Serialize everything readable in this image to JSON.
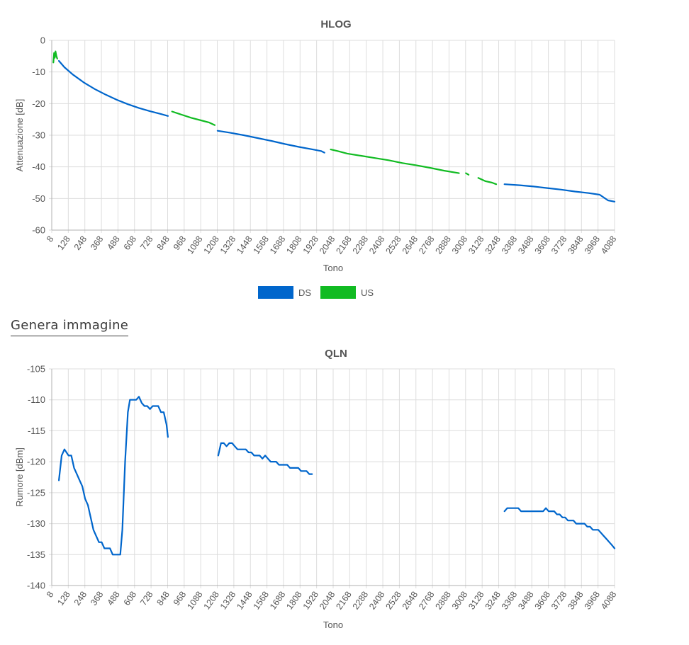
{
  "generate_link": "Genera immagine",
  "chart_data": [
    {
      "type": "line",
      "title": "HLOG",
      "xlabel": "Tono",
      "ylabel": "Attenuazione [dB]",
      "xlim": [
        8,
        4088
      ],
      "ylim": [
        -60,
        0
      ],
      "yticks": [
        0,
        -10,
        -20,
        -30,
        -40,
        -50,
        -60
      ],
      "xticks": [
        "8",
        "128",
        "248",
        "368",
        "488",
        "608",
        "728",
        "848",
        "968",
        "1088",
        "1208",
        "1328",
        "1448",
        "1568",
        "1688",
        "1808",
        "1928",
        "2048",
        "2168",
        "2288",
        "2408",
        "2528",
        "2648",
        "2768",
        "2888",
        "3008",
        "3128",
        "3248",
        "3368",
        "3488",
        "3608",
        "3728",
        "3848",
        "3968",
        "4088"
      ],
      "grid": true,
      "legend": "bottom",
      "series": [
        {
          "name": "DS",
          "color": "#0066cc",
          "segments": [
            [
              [
                60,
                -6.5
              ],
              [
                100,
                -8.5
              ],
              [
                160,
                -10.8
              ],
              [
                240,
                -13.3
              ],
              [
                320,
                -15.4
              ],
              [
                400,
                -17.2
              ],
              [
                480,
                -18.8
              ],
              [
                560,
                -20.2
              ],
              [
                640,
                -21.4
              ],
              [
                720,
                -22.4
              ],
              [
                800,
                -23.3
              ],
              [
                850,
                -23.9
              ]
            ],
            [
              [
                1210,
                -28.6
              ],
              [
                1300,
                -29.2
              ],
              [
                1400,
                -30.0
              ],
              [
                1500,
                -30.9
              ],
              [
                1600,
                -31.8
              ],
              [
                1700,
                -32.8
              ],
              [
                1800,
                -33.7
              ],
              [
                1900,
                -34.5
              ],
              [
                1960,
                -35.0
              ],
              [
                1985,
                -35.5
              ]
            ],
            [
              [
                3290,
                -45.5
              ],
              [
                3400,
                -45.8
              ],
              [
                3500,
                -46.2
              ],
              [
                3600,
                -46.7
              ],
              [
                3700,
                -47.2
              ],
              [
                3800,
                -47.8
              ],
              [
                3900,
                -48.3
              ],
              [
                3980,
                -48.8
              ],
              [
                4040,
                -50.6
              ],
              [
                4088,
                -51.0
              ]
            ]
          ]
        },
        {
          "name": "US",
          "color": "#11bb22",
          "segments": [
            [
              [
                20,
                -7.0
              ],
              [
                25,
                -4.0
              ],
              [
                30,
                -5.5
              ],
              [
                35,
                -3.5
              ],
              [
                42,
                -5.0
              ],
              [
                48,
                -5.8
              ]
            ],
            [
              [
                880,
                -22.5
              ],
              [
                950,
                -23.5
              ],
              [
                1020,
                -24.5
              ],
              [
                1090,
                -25.3
              ],
              [
                1150,
                -26.0
              ],
              [
                1190,
                -26.8
              ]
            ],
            [
              [
                2030,
                -34.5
              ],
              [
                2080,
                -35.0
              ],
              [
                2150,
                -35.8
              ],
              [
                2250,
                -36.5
              ],
              [
                2350,
                -37.2
              ],
              [
                2450,
                -37.9
              ],
              [
                2550,
                -38.8
              ],
              [
                2650,
                -39.5
              ],
              [
                2750,
                -40.3
              ],
              [
                2850,
                -41.2
              ],
              [
                2960,
                -42.0
              ]
            ],
            [
              [
                3010,
                -42.0
              ],
              [
                3030,
                -42.5
              ]
            ],
            [
              [
                3100,
                -43.5
              ],
              [
                3150,
                -44.5
              ],
              [
                3200,
                -45.0
              ],
              [
                3230,
                -45.5
              ]
            ]
          ]
        }
      ]
    },
    {
      "type": "line",
      "title": "QLN",
      "xlabel": "Tono",
      "ylabel": "Rumore [dBm]",
      "xlim": [
        8,
        4088
      ],
      "ylim": [
        -140,
        -105
      ],
      "yticks": [
        -105,
        -110,
        -115,
        -120,
        -125,
        -130,
        -135,
        -140
      ],
      "xticks": [
        "8",
        "128",
        "248",
        "368",
        "488",
        "608",
        "728",
        "848",
        "968",
        "1088",
        "1208",
        "1328",
        "1448",
        "1568",
        "1688",
        "1808",
        "1928",
        "2048",
        "2168",
        "2288",
        "2408",
        "2528",
        "2648",
        "2768",
        "2888",
        "3008",
        "3128",
        "3248",
        "3368",
        "3488",
        "3608",
        "3728",
        "3848",
        "3968",
        "4088"
      ],
      "grid": true,
      "series": [
        {
          "name": "DS",
          "color": "#0066cc",
          "segments": [
            [
              [
                60,
                -123
              ],
              [
                80,
                -119
              ],
              [
                100,
                -118
              ],
              [
                130,
                -119
              ],
              [
                150,
                -119
              ],
              [
                170,
                -121
              ],
              [
                190,
                -122
              ],
              [
                210,
                -123
              ],
              [
                230,
                -124
              ],
              [
                250,
                -126
              ],
              [
                270,
                -127
              ],
              [
                290,
                -129
              ],
              [
                310,
                -131
              ],
              [
                330,
                -132
              ],
              [
                350,
                -133
              ],
              [
                370,
                -133
              ],
              [
                390,
                -134
              ],
              [
                410,
                -134
              ],
              [
                430,
                -134
              ],
              [
                450,
                -135
              ],
              [
                470,
                -135
              ],
              [
                490,
                -135
              ],
              [
                505,
                -135
              ],
              [
                520,
                -131
              ],
              [
                540,
                -120
              ],
              [
                560,
                -112
              ],
              [
                575,
                -110
              ],
              [
                600,
                -110
              ],
              [
                620,
                -110
              ],
              [
                640,
                -109.5
              ],
              [
                660,
                -110.5
              ],
              [
                680,
                -111
              ],
              [
                700,
                -111
              ],
              [
                720,
                -111.5
              ],
              [
                740,
                -111
              ],
              [
                760,
                -111
              ],
              [
                780,
                -111
              ],
              [
                800,
                -112
              ],
              [
                820,
                -112
              ],
              [
                840,
                -114
              ],
              [
                850,
                -116
              ]
            ],
            [
              [
                1215,
                -119
              ],
              [
                1235,
                -117
              ],
              [
                1255,
                -117
              ],
              [
                1275,
                -117.5
              ],
              [
                1295,
                -117
              ],
              [
                1315,
                -117
              ],
              [
                1335,
                -117.5
              ],
              [
                1355,
                -118
              ],
              [
                1375,
                -118
              ],
              [
                1395,
                -118
              ],
              [
                1415,
                -118
              ],
              [
                1435,
                -118.5
              ],
              [
                1455,
                -118.5
              ],
              [
                1475,
                -119
              ],
              [
                1495,
                -119
              ],
              [
                1515,
                -119
              ],
              [
                1535,
                -119.5
              ],
              [
                1555,
                -119
              ],
              [
                1575,
                -119.5
              ],
              [
                1595,
                -120
              ],
              [
                1615,
                -120
              ],
              [
                1635,
                -120
              ],
              [
                1655,
                -120.5
              ],
              [
                1675,
                -120.5
              ],
              [
                1695,
                -120.5
              ],
              [
                1715,
                -120.5
              ],
              [
                1735,
                -121
              ],
              [
                1755,
                -121
              ],
              [
                1775,
                -121
              ],
              [
                1795,
                -121
              ],
              [
                1815,
                -121.5
              ],
              [
                1835,
                -121.5
              ],
              [
                1855,
                -121.5
              ],
              [
                1875,
                -122
              ],
              [
                1895,
                -122
              ]
            ],
            [
              [
                3290,
                -128
              ],
              [
                3310,
                -127.5
              ],
              [
                3330,
                -127.5
              ],
              [
                3350,
                -127.5
              ],
              [
                3370,
                -127.5
              ],
              [
                3390,
                -127.5
              ],
              [
                3410,
                -128
              ],
              [
                3430,
                -128
              ],
              [
                3450,
                -128
              ],
              [
                3470,
                -128
              ],
              [
                3490,
                -128
              ],
              [
                3510,
                -128
              ],
              [
                3530,
                -128
              ],
              [
                3550,
                -128
              ],
              [
                3570,
                -128
              ],
              [
                3590,
                -127.5
              ],
              [
                3610,
                -128
              ],
              [
                3630,
                -128
              ],
              [
                3650,
                -128
              ],
              [
                3670,
                -128.5
              ],
              [
                3690,
                -128.5
              ],
              [
                3710,
                -129
              ],
              [
                3730,
                -129
              ],
              [
                3750,
                -129.5
              ],
              [
                3770,
                -129.5
              ],
              [
                3790,
                -129.5
              ],
              [
                3810,
                -130
              ],
              [
                3830,
                -130
              ],
              [
                3850,
                -130
              ],
              [
                3870,
                -130
              ],
              [
                3890,
                -130.5
              ],
              [
                3910,
                -130.5
              ],
              [
                3930,
                -131
              ],
              [
                3950,
                -131
              ],
              [
                3970,
                -131
              ],
              [
                3990,
                -131.5
              ],
              [
                4010,
                -132
              ],
              [
                4030,
                -132.5
              ],
              [
                4050,
                -133
              ],
              [
                4070,
                -133.5
              ],
              [
                4088,
                -134
              ]
            ]
          ]
        }
      ]
    }
  ]
}
